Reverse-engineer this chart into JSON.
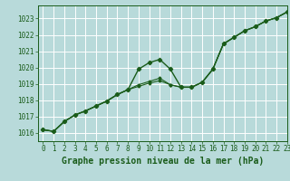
{
  "title": "Graphe pression niveau de la mer (hPa)",
  "bg_color": "#b8dada",
  "grid_color": "#ffffff",
  "line_color": "#1a5c1a",
  "marker_color": "#1a5c1a",
  "xlim": [
    -0.5,
    23
  ],
  "ylim": [
    1015.5,
    1023.8
  ],
  "xticks": [
    0,
    1,
    2,
    3,
    4,
    5,
    6,
    7,
    8,
    9,
    10,
    11,
    12,
    13,
    14,
    15,
    16,
    17,
    18,
    19,
    20,
    21,
    22,
    23
  ],
  "yticks": [
    1016,
    1017,
    1018,
    1019,
    1020,
    1021,
    1022,
    1023
  ],
  "series": [
    [
      1016.2,
      1016.1,
      1016.7,
      1017.1,
      1017.35,
      1017.65,
      1017.95,
      1018.35,
      1018.65,
      1019.9,
      1020.3,
      1020.5,
      1019.9,
      1018.8,
      1018.8,
      1019.1,
      1019.9,
      1021.45,
      1021.85,
      1022.25,
      1022.5,
      1022.85,
      1023.05,
      1023.4
    ],
    [
      1016.2,
      1016.1,
      1016.7,
      1017.1,
      1017.35,
      1017.65,
      1017.95,
      1018.35,
      1018.65,
      1018.95,
      1019.15,
      1019.35,
      1018.95,
      1018.8,
      1018.8,
      1019.1,
      1019.9,
      1021.45,
      1021.85,
      1022.25,
      1022.5,
      1022.85,
      1023.05,
      1023.4
    ],
    [
      1016.2,
      1016.1,
      1016.7,
      1017.1,
      1017.35,
      1017.65,
      1017.95,
      1018.35,
      1018.65,
      1018.85,
      1019.05,
      1019.2,
      1018.95,
      1018.8,
      1018.8,
      1019.1,
      1019.9,
      1021.45,
      1021.85,
      1022.25,
      1022.5,
      1022.85,
      1023.05,
      1023.4
    ]
  ],
  "tick_fontsize": 5.5,
  "label_fontsize": 7.0,
  "label_fontweight": "bold",
  "label_fontfamily": "monospace"
}
